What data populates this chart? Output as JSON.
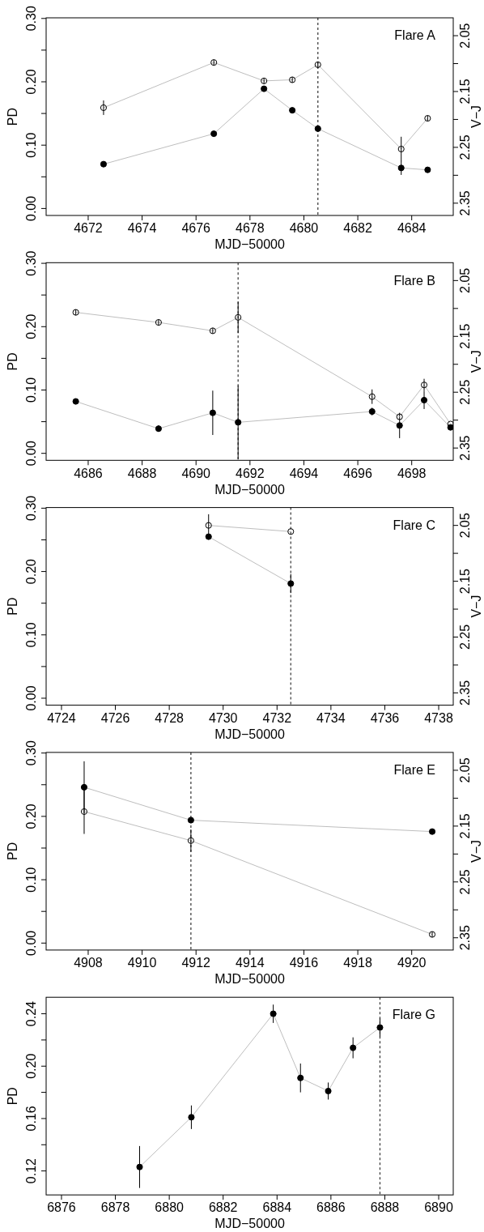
{
  "chart_data": [
    {
      "type": "line",
      "xlabel": "MJD−50000",
      "ylabel": "PD",
      "y2label": "V−J",
      "annotations": [
        "Flare A"
      ],
      "marker": "circle",
      "line_style": "solid",
      "grid": false,
      "xlim": [
        4670.44,
        4685.54
      ],
      "xticks": [
        4672,
        4674,
        4676,
        4678,
        4680,
        4682,
        4684
      ],
      "ylim": [
        -0.011,
        0.301
      ],
      "yticks": [
        {
          "value": 0,
          "label": "0.00"
        },
        {
          "value": 0.05,
          "label": null
        },
        {
          "value": 0.1,
          "label": "0.10"
        },
        {
          "value": 0.15,
          "label": null
        },
        {
          "value": 0.2,
          "label": "0.20"
        },
        {
          "value": 0.25,
          "label": null
        },
        {
          "value": 0.3,
          "label": "0.30"
        }
      ],
      "y2lim": [
        2.372,
        2.018
      ],
      "y2ticks": [
        2.05,
        {
          "value": 2.1,
          "label": null
        },
        2.15,
        {
          "value": 2.2,
          "label": null
        },
        2.25,
        {
          "value": 2.3,
          "label": null
        },
        2.35
      ],
      "ref_lines": [
        {
          "axis": "x",
          "value": 4680.52,
          "line_style": "dashed"
        }
      ],
      "series": [
        {
          "color": "#000000",
          "x": [
            4672.57,
            4676.66,
            4678.52,
            4679.57,
            4680.52,
            4683.61,
            4684.59
          ],
          "values": [
            0.07,
            0.118,
            0.189,
            0.155,
            0.126,
            0.064,
            0.061
          ],
          "errors": [
            null,
            null,
            null,
            null,
            null,
            0.011,
            null
          ]
        },
        {
          "color": "#000000",
          "axis": "y2",
          "x": [
            4672.57,
            4676.66,
            4678.52,
            4679.57,
            4680.52,
            4683.61,
            4684.59
          ],
          "values": [
            2.179,
            2.098,
            2.131,
            2.129,
            2.102,
            2.253,
            2.198
          ],
          "errors": [
            0.013,
            0.005,
            0.005,
            0.005,
            0.005,
            0.022,
            0.005
          ]
        }
      ]
    },
    {
      "type": "line",
      "xlabel": "MJD−50000",
      "ylabel": "PD",
      "y2label": "V−J",
      "annotations": [
        "Flare B"
      ],
      "marker": "circle",
      "line_style": "solid",
      "grid": false,
      "xlim": [
        4684.44,
        4699.54
      ],
      "xticks": [
        4686,
        4688,
        4690,
        4692,
        4694,
        4696,
        4698
      ],
      "ylim": [
        -0.011,
        0.301
      ],
      "yticks": [
        {
          "value": 0,
          "label": "0.00"
        },
        {
          "value": 0.05,
          "label": null
        },
        {
          "value": 0.1,
          "label": "0.10"
        },
        {
          "value": 0.15,
          "label": null
        },
        {
          "value": 0.2,
          "label": "0.20"
        },
        {
          "value": 0.25,
          "label": null
        },
        {
          "value": 0.3,
          "label": "0.30"
        }
      ],
      "y2lim": [
        2.372,
        2.018
      ],
      "y2ticks": [
        2.05,
        {
          "value": 2.1,
          "label": null
        },
        2.15,
        {
          "value": 2.2,
          "label": null
        },
        2.25,
        {
          "value": 2.3,
          "label": null
        },
        2.35
      ],
      "ref_lines": [
        {
          "axis": "x",
          "value": 4691.56,
          "line_style": "dashed"
        }
      ],
      "series": [
        {
          "color": "#000000",
          "x": [
            4685.54,
            4688.61,
            4690.62,
            4691.56,
            4696.53,
            4697.55,
            4698.46,
            4699.44
          ],
          "values": [
            0.082,
            0.039,
            0.064,
            0.049,
            0.066,
            0.044,
            0.084,
            0.041
          ],
          "errors": [
            null,
            0.005,
            0.035,
            0.058,
            0.006,
            0.02,
            0.014,
            null
          ]
        },
        {
          "color": "#000000",
          "axis": "y2",
          "x": [
            4685.54,
            4688.61,
            4690.62,
            4691.56,
            4696.53,
            4697.55,
            4698.46,
            4699.44
          ],
          "values": [
            2.107,
            2.125,
            2.14,
            2.116,
            2.258,
            2.294,
            2.237,
            2.307
          ],
          "errors": [
            0.005,
            0.005,
            0.005,
            0.028,
            0.013,
            null,
            0.011,
            null
          ]
        }
      ]
    },
    {
      "type": "line",
      "xlabel": "MJD−50000",
      "ylabel": "PD",
      "y2label": "V−J",
      "annotations": [
        "Flare C"
      ],
      "marker": "circle",
      "line_style": "solid",
      "grid": false,
      "xlim": [
        4723.43,
        4738.54
      ],
      "xticks": [
        4724,
        4726,
        4728,
        4730,
        4732,
        4734,
        4736,
        4738
      ],
      "ylim": [
        -0.011,
        0.301
      ],
      "yticks": [
        {
          "value": 0,
          "label": "0.00"
        },
        {
          "value": 0.05,
          "label": null
        },
        {
          "value": 0.1,
          "label": "0.10"
        },
        {
          "value": 0.15,
          "label": null
        },
        {
          "value": 0.2,
          "label": "0.20"
        },
        {
          "value": 0.25,
          "label": null
        },
        {
          "value": 0.3,
          "label": "0.30"
        }
      ],
      "y2lim": [
        2.372,
        2.018
      ],
      "y2ticks": [
        2.05,
        {
          "value": 2.1,
          "label": null
        },
        2.15,
        {
          "value": 2.2,
          "label": null
        },
        2.25,
        {
          "value": 2.3,
          "label": null
        },
        2.35
      ],
      "ref_lines": [
        {
          "axis": "x",
          "value": 4732.51,
          "line_style": "dashed"
        }
      ],
      "series": [
        {
          "color": "#000000",
          "x": [
            4729.46,
            4732.51
          ],
          "values": [
            0.255,
            0.181
          ],
          "errors": [
            null,
            0.015
          ]
        },
        {
          "color": "#000000",
          "axis": "y2",
          "x": [
            4729.46,
            4732.51
          ],
          "values": [
            2.05,
            2.061
          ],
          "errors": [
            0.02,
            null
          ]
        }
      ]
    },
    {
      "type": "line",
      "xlabel": "MJD−50000",
      "ylabel": "PD",
      "y2label": "V−J",
      "annotations": [
        "Flare E"
      ],
      "marker": "circle",
      "line_style": "solid",
      "grid": false,
      "xlim": [
        4906.44,
        4921.54
      ],
      "xticks": [
        4908,
        4910,
        4912,
        4914,
        4916,
        4918,
        4920
      ],
      "ylim": [
        -0.011,
        0.301
      ],
      "yticks": [
        {
          "value": 0,
          "label": "0.00"
        },
        {
          "value": 0.05,
          "label": null
        },
        {
          "value": 0.1,
          "label": "0.10"
        },
        {
          "value": 0.15,
          "label": null
        },
        {
          "value": 0.2,
          "label": "0.20"
        },
        {
          "value": 0.25,
          "label": null
        },
        {
          "value": 0.3,
          "label": "0.30"
        }
      ],
      "y2lim": [
        2.372,
        2.018
      ],
      "y2ticks": [
        2.05,
        {
          "value": 2.1,
          "label": null
        },
        2.15,
        {
          "value": 2.2,
          "label": null
        },
        2.25,
        {
          "value": 2.3,
          "label": null
        },
        2.35
      ],
      "ref_lines": [
        {
          "axis": "x",
          "value": 4911.81,
          "line_style": "dashed"
        }
      ],
      "series": [
        {
          "color": "#000000",
          "x": [
            4907.85,
            4911.81,
            4920.76
          ],
          "values": [
            0.246,
            0.194,
            0.176
          ],
          "errors": [
            0.041,
            null,
            null
          ]
        },
        {
          "color": "#000000",
          "axis": "y2",
          "x": [
            4907.85,
            4911.81,
            4920.76
          ],
          "values": [
            2.124,
            2.176,
            2.344
          ],
          "errors": [
            0.04,
            0.02,
            0.005
          ]
        }
      ]
    },
    {
      "type": "line",
      "xlabel": "MJD−50000",
      "ylabel": "PD",
      "annotations": [
        "Flare G"
      ],
      "marker": "circle",
      "line_style": "solid",
      "grid": false,
      "xlim": [
        6875.43,
        6890.54
      ],
      "xticks": [
        6876,
        6878,
        6880,
        6882,
        6884,
        6886,
        6888,
        6890
      ],
      "ylim": [
        0.1017,
        0.2526
      ],
      "yticks": [
        0.12,
        {
          "value": 0.14,
          "label": null
        },
        0.16,
        {
          "value": 0.18,
          "label": null
        },
        {
          "value": 0.2,
          "label": "0.20"
        },
        {
          "value": 0.22,
          "label": null
        },
        0.24
      ],
      "ref_lines": [
        {
          "axis": "x",
          "value": 6887.82,
          "line_style": "dashed"
        }
      ],
      "series": [
        {
          "color": "#000000",
          "x": [
            6878.9,
            6880.82,
            6883.86,
            6884.87,
            6885.9,
            6886.82,
            6887.82
          ],
          "values": [
            0.123,
            0.161,
            0.24,
            0.191,
            0.181,
            0.214,
            0.2295
          ],
          "errors": [
            0.016,
            0.009,
            0.007,
            0.011,
            0.0065,
            0.008,
            0.007
          ]
        }
      ]
    }
  ]
}
